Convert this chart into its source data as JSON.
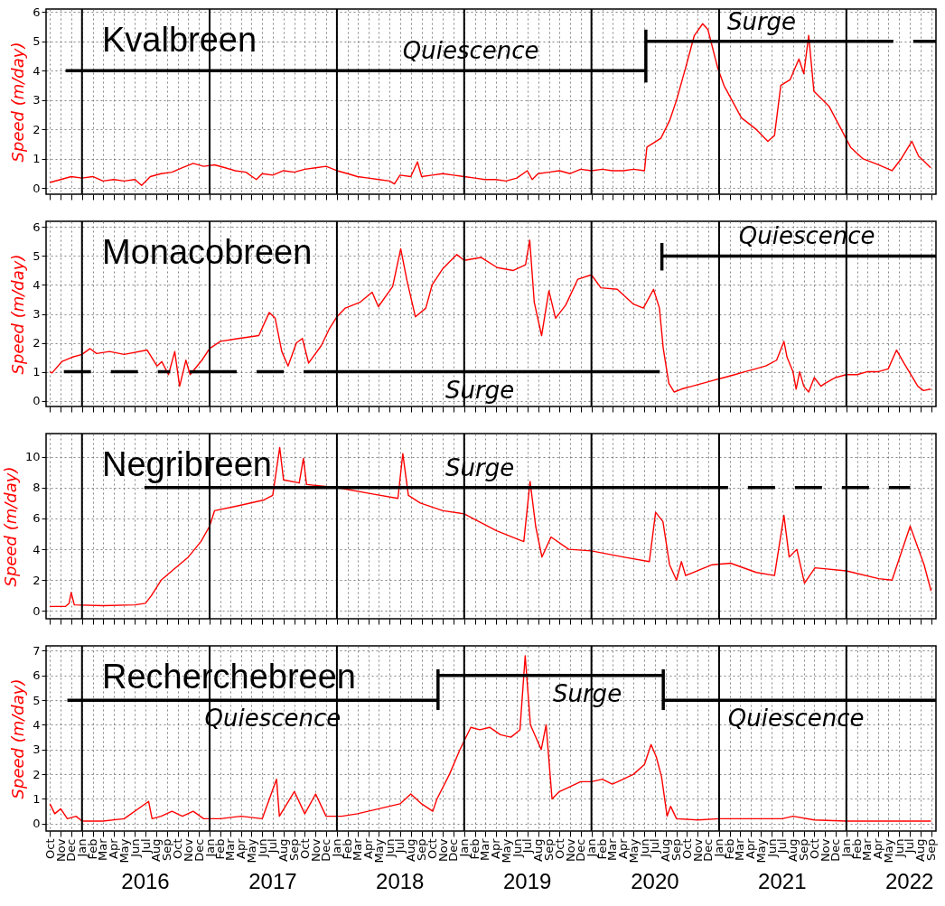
{
  "chart_data": [
    {
      "type": "line",
      "title": "Kvalbreen",
      "ylabel": "Speed (m/day)",
      "xlim": [
        "2015-09-20",
        "2022-09-15"
      ],
      "ylim": [
        -0.2,
        6.1
      ],
      "yticks": [
        0,
        1,
        2,
        3,
        4,
        5,
        6
      ],
      "grid": true,
      "tick_labels": "y",
      "ref_lines": [
        {
          "axis": "x",
          "value": "2016-01-01",
          "color": "#000000"
        },
        {
          "axis": "x",
          "value": "2017-01-01",
          "color": "#000000"
        },
        {
          "axis": "x",
          "value": "2018-01-01",
          "color": "#000000"
        },
        {
          "axis": "x",
          "value": "2019-01-01",
          "color": "#000000"
        },
        {
          "axis": "x",
          "value": "2020-01-01",
          "color": "#000000"
        },
        {
          "axis": "x",
          "value": "2021-01-01",
          "color": "#000000"
        },
        {
          "axis": "x",
          "value": "2022-01-01",
          "color": "#000000"
        }
      ],
      "series": [
        {
          "color": "#ff0000",
          "x": [
            "2015-10-01",
            "2015-11-01",
            "2015-12-01",
            "2016-01-01",
            "2016-02-01",
            "2016-03-01",
            "2016-04-01",
            "2016-05-01",
            "2016-06-01",
            "2016-06-20",
            "2016-07-15",
            "2016-08-15",
            "2016-09-15",
            "2016-10-15",
            "2016-11-15",
            "2016-12-15",
            "2017-01-15",
            "2017-02-15",
            "2017-03-15",
            "2017-04-15",
            "2017-05-15",
            "2017-06-01",
            "2017-07-01",
            "2017-08-01",
            "2017-09-01",
            "2017-10-01",
            "2017-11-01",
            "2017-12-01",
            "2018-01-01",
            "2018-02-01",
            "2018-03-01",
            "2018-04-01",
            "2018-05-01",
            "2018-06-01",
            "2018-06-15",
            "2018-07-01",
            "2018-08-01",
            "2018-08-20",
            "2018-09-01",
            "2018-10-01",
            "2018-11-01",
            "2018-12-01",
            "2019-01-01",
            "2019-02-01",
            "2019-03-01",
            "2019-04-01",
            "2019-05-01",
            "2019-06-01",
            "2019-07-01",
            "2019-07-15",
            "2019-08-01",
            "2019-09-01",
            "2019-10-01",
            "2019-11-01",
            "2019-12-01",
            "2020-01-01",
            "2020-02-01",
            "2020-03-01",
            "2020-04-01",
            "2020-05-01",
            "2020-06-01",
            "2020-06-08",
            "2020-07-18",
            "2020-08-12",
            "2020-09-01",
            "2020-09-27",
            "2020-10-22",
            "2020-11-15",
            "2020-11-30",
            "2020-12-28",
            "2021-01-15",
            "2021-03-06",
            "2021-04-18",
            "2021-05-21",
            "2021-06-09",
            "2021-06-27",
            "2021-07-24",
            "2021-08-18",
            "2021-09-01",
            "2021-09-15",
            "2021-09-30",
            "2021-11-12",
            "2021-12-22",
            "2022-01-13",
            "2022-02-18",
            "2022-04-03",
            "2022-05-12",
            "2022-06-07",
            "2022-07-08",
            "2022-07-27",
            "2022-08-31"
          ],
          "values": [
            0.2,
            0.3,
            0.4,
            0.35,
            0.4,
            0.25,
            0.3,
            0.25,
            0.3,
            0.1,
            0.4,
            0.5,
            0.55,
            0.7,
            0.85,
            0.75,
            0.8,
            0.7,
            0.6,
            0.55,
            0.3,
            0.5,
            0.45,
            0.6,
            0.55,
            0.65,
            0.7,
            0.75,
            0.6,
            0.5,
            0.4,
            0.35,
            0.3,
            0.25,
            0.15,
            0.45,
            0.4,
            0.9,
            0.4,
            0.45,
            0.5,
            0.45,
            0.4,
            0.35,
            0.3,
            0.3,
            0.25,
            0.35,
            0.6,
            0.3,
            0.5,
            0.55,
            0.6,
            0.5,
            0.65,
            0.6,
            0.65,
            0.6,
            0.6,
            0.65,
            0.6,
            1.4,
            1.7,
            2.3,
            3.0,
            4.1,
            5.2,
            5.6,
            5.4,
            4.1,
            3.5,
            2.4,
            2.0,
            1.6,
            1.8,
            3.5,
            3.7,
            4.4,
            3.9,
            5.2,
            3.3,
            2.8,
            1.9,
            1.4,
            1.0,
            0.8,
            0.6,
            1.0,
            1.6,
            1.1,
            0.7
          ]
        },
        {
          "color": "#000000",
          "line_style": "solid",
          "x": [
            "2015-11-15",
            "2020-06-05"
          ],
          "values": [
            4,
            4
          ]
        },
        {
          "color": "#000000",
          "line_style": "solid",
          "x": [
            "2020-06-05",
            "2020-06-05"
          ],
          "values": [
            3.6,
            5.4
          ]
        },
        {
          "color": "#000000",
          "line_style": "solid",
          "x": [
            "2020-06-05",
            "2022-02-27"
          ],
          "values": [
            5,
            5
          ]
        },
        {
          "color": "#000000",
          "line_style": "dashed",
          "x": [
            "2022-02-27",
            "2022-09-15"
          ],
          "values": [
            5,
            5
          ]
        }
      ],
      "annotations": [
        {
          "text": "Quiescence",
          "x": "2019-01-20",
          "y": 4
        },
        {
          "text": "Surge",
          "x": "2021-05-03",
          "y": 5
        }
      ]
    },
    {
      "type": "line",
      "title": "Monacobreen",
      "ylabel": "Speed (m/day)",
      "xlim": [
        "2015-09-20",
        "2022-09-15"
      ],
      "ylim": [
        -0.2,
        6.2
      ],
      "yticks": [
        0,
        1,
        2,
        3,
        4,
        5,
        6
      ],
      "grid": true,
      "tick_labels": "y",
      "ref_lines": [
        {
          "axis": "x",
          "value": "2016-01-01",
          "color": "#000000"
        },
        {
          "axis": "x",
          "value": "2017-01-01",
          "color": "#000000"
        },
        {
          "axis": "x",
          "value": "2018-01-01",
          "color": "#000000"
        },
        {
          "axis": "x",
          "value": "2019-01-01",
          "color": "#000000"
        },
        {
          "axis": "x",
          "value": "2020-01-01",
          "color": "#000000"
        },
        {
          "axis": "x",
          "value": "2021-01-01",
          "color": "#000000"
        },
        {
          "axis": "x",
          "value": "2022-01-01",
          "color": "#000000"
        }
      ],
      "series": [
        {
          "color": "#ff0000",
          "x": [
            "2015-10-01",
            "2015-10-07",
            "2015-11-05",
            "2015-12-03",
            "2016-01-01",
            "2016-01-24",
            "2016-02-12",
            "2016-03-20",
            "2016-05-01",
            "2016-07-06",
            "2016-08-03",
            "2016-08-17",
            "2016-09-05",
            "2016-09-23",
            "2016-10-07",
            "2016-10-25",
            "2016-11-06",
            "2016-12-10",
            "2017-01-01",
            "2017-02-01",
            "2017-03-25",
            "2017-05-22",
            "2017-06-21",
            "2017-07-08",
            "2017-07-27",
            "2017-08-14",
            "2017-09-07",
            "2017-09-24",
            "2017-10-12",
            "2017-11-17",
            "2017-12-11",
            "2018-01-01",
            "2018-01-25",
            "2018-03-08",
            "2018-04-12",
            "2018-04-30",
            "2018-06-10",
            "2018-07-03",
            "2018-07-21",
            "2018-08-14",
            "2018-09-13",
            "2018-10-01",
            "2018-10-31",
            "2018-12-11",
            "2019-01-01",
            "2019-02-19",
            "2019-04-06",
            "2019-05-22",
            "2019-06-26",
            "2019-07-08",
            "2019-07-21",
            "2019-08-11",
            "2019-09-01",
            "2019-09-20",
            "2019-10-19",
            "2019-11-23",
            "2020-01-01",
            "2020-01-28",
            "2020-03-15",
            "2020-04-29",
            "2020-05-29",
            "2020-06-27",
            "2020-07-14",
            "2020-07-25",
            "2020-08-10",
            "2020-08-25",
            "2020-09-15",
            "2020-10-15",
            "2020-11-15",
            "2020-12-15",
            "2021-01-15",
            "2021-02-15",
            "2021-03-15",
            "2021-04-15",
            "2021-05-15",
            "2021-06-15",
            "2021-07-06",
            "2021-07-15",
            "2021-08-01",
            "2021-08-10",
            "2021-08-20",
            "2021-09-01",
            "2021-09-15",
            "2021-10-01",
            "2021-10-20",
            "2021-11-01",
            "2021-12-01",
            "2022-01-01",
            "2022-02-01",
            "2022-03-01",
            "2022-04-01",
            "2022-05-01",
            "2022-05-25",
            "2022-06-15",
            "2022-07-10",
            "2022-07-25",
            "2022-08-10",
            "2022-08-31"
          ],
          "values": [
            1.0,
            0.96,
            1.36,
            1.5,
            1.6,
            1.8,
            1.63,
            1.7,
            1.6,
            1.75,
            1.2,
            1.35,
            0.9,
            1.7,
            0.5,
            1.4,
            0.9,
            1.4,
            1.8,
            2.05,
            2.15,
            2.25,
            3.05,
            2.85,
            1.7,
            1.2,
            2.0,
            2.15,
            1.3,
            1.9,
            2.5,
            2.9,
            3.2,
            3.4,
            3.75,
            3.25,
            3.95,
            5.25,
            4.15,
            2.9,
            3.2,
            4.0,
            4.55,
            5.05,
            4.85,
            4.95,
            4.6,
            4.5,
            4.7,
            5.55,
            3.4,
            2.25,
            3.8,
            2.85,
            3.3,
            4.2,
            4.35,
            3.9,
            3.85,
            3.35,
            3.2,
            3.85,
            3.2,
            1.8,
            0.6,
            0.3,
            0.4,
            0.5,
            0.6,
            0.7,
            0.8,
            0.9,
            1.0,
            1.1,
            1.2,
            1.4,
            2.05,
            1.5,
            1.0,
            0.4,
            1.0,
            0.5,
            0.3,
            0.8,
            0.5,
            0.6,
            0.8,
            0.9,
            0.9,
            1.0,
            1.0,
            1.1,
            1.75,
            1.3,
            0.8,
            0.5,
            0.35,
            0.4
          ]
        },
        {
          "color": "#000000",
          "line_style": "dashed",
          "x": [
            "2015-11-10",
            "2016-09-10"
          ],
          "values": [
            1,
            1
          ]
        },
        {
          "color": "#000000",
          "line_style": "solid",
          "x": [
            "2016-11-05",
            "2017-01-01"
          ],
          "values": [
            1,
            1
          ]
        },
        {
          "color": "#000000",
          "line_style": "dashed",
          "x": [
            "2017-01-01",
            "2017-10-26"
          ],
          "values": [
            1,
            1
          ]
        },
        {
          "color": "#000000",
          "line_style": "solid",
          "x": [
            "2017-10-26",
            "2020-07-15"
          ],
          "values": [
            1,
            1
          ]
        },
        {
          "color": "#000000",
          "line_style": "solid",
          "x": [
            "2020-07-21",
            "2020-07-21"
          ],
          "values": [
            4.5,
            5.45
          ]
        },
        {
          "color": "#000000",
          "line_style": "solid",
          "x": [
            "2020-07-21",
            "2022-09-15"
          ],
          "values": [
            5,
            5
          ]
        }
      ],
      "annotations": [
        {
          "text": "Surge",
          "x": "2019-02-15",
          "y": 1
        },
        {
          "text": "Quiescence",
          "x": "2021-09-10",
          "y": 5
        }
      ]
    },
    {
      "type": "line",
      "title": "Negribreen",
      "ylabel": "Speed (m/day)",
      "xlim": [
        "2015-09-20",
        "2022-09-15"
      ],
      "ylim": [
        -0.5,
        11.5
      ],
      "yticks": [
        0,
        2,
        4,
        6,
        8,
        10
      ],
      "grid": true,
      "tick_labels": "y",
      "ref_lines": [
        {
          "axis": "x",
          "value": "2016-01-01",
          "color": "#000000"
        },
        {
          "axis": "x",
          "value": "2017-01-01",
          "color": "#000000"
        },
        {
          "axis": "x",
          "value": "2018-01-01",
          "color": "#000000"
        },
        {
          "axis": "x",
          "value": "2019-01-01",
          "color": "#000000"
        },
        {
          "axis": "x",
          "value": "2020-01-01",
          "color": "#000000"
        },
        {
          "axis": "x",
          "value": "2021-01-01",
          "color": "#000000"
        },
        {
          "axis": "x",
          "value": "2022-01-01",
          "color": "#000000"
        }
      ],
      "series": [
        {
          "color": "#ff0000",
          "x": [
            "2015-10-01",
            "2015-11-15",
            "2015-11-25",
            "2015-12-01",
            "2015-12-10",
            "2016-03-01",
            "2016-06-01",
            "2016-07-01",
            "2016-07-18",
            "2016-08-15",
            "2016-09-15",
            "2016-11-01",
            "2016-12-07",
            "2017-01-01",
            "2017-01-15",
            "2017-03-20",
            "2017-06-06",
            "2017-07-01",
            "2017-07-21",
            "2017-08-01",
            "2017-09-15",
            "2017-09-27",
            "2017-10-06",
            "2018-01-01",
            "2018-04-10",
            "2018-06-25",
            "2018-07-09",
            "2018-07-25",
            "2018-08-28",
            "2018-11-01",
            "2019-01-01",
            "2019-04-04",
            "2019-06-21",
            "2019-07-09",
            "2019-07-25",
            "2019-08-12",
            "2019-09-07",
            "2019-10-28",
            "2020-01-01",
            "2020-04-01",
            "2020-06-15",
            "2020-07-03",
            "2020-07-24",
            "2020-08-12",
            "2020-09-01",
            "2020-09-15",
            "2020-09-27",
            "2020-12-12",
            "2021-02-03",
            "2021-04-18",
            "2021-06-09",
            "2021-07-06",
            "2021-07-21",
            "2021-08-12",
            "2021-09-03",
            "2021-10-03",
            "2022-01-01",
            "2022-04-04",
            "2022-05-12",
            "2022-07-03",
            "2022-08-12",
            "2022-09-01"
          ],
          "values": [
            0.3,
            0.3,
            0.5,
            1.2,
            0.4,
            0.35,
            0.4,
            0.5,
            1.0,
            2.0,
            2.6,
            3.5,
            4.5,
            5.5,
            6.5,
            6.8,
            7.2,
            7.5,
            10.6,
            8.5,
            8.3,
            9.9,
            8.2,
            8.0,
            7.6,
            7.3,
            10.2,
            7.5,
            7.0,
            6.5,
            6.3,
            5.2,
            4.5,
            8.4,
            5.5,
            3.5,
            4.8,
            4.0,
            3.9,
            3.5,
            3.2,
            6.4,
            5.8,
            3.0,
            2.0,
            3.2,
            2.3,
            3.0,
            3.1,
            2.5,
            2.3,
            6.2,
            3.5,
            4.0,
            1.8,
            2.8,
            2.6,
            2.1,
            2.0,
            5.5,
            3.0,
            1.3
          ]
        },
        {
          "color": "#000000",
          "line_style": "solid",
          "x": [
            "2016-06-28",
            "2020-11-10"
          ],
          "values": [
            8,
            8
          ]
        },
        {
          "color": "#000000",
          "line_style": "dashed",
          "x": [
            "2020-11-10",
            "2022-07-03"
          ],
          "values": [
            8,
            8
          ]
        }
      ],
      "annotations": [
        {
          "text": "Surge",
          "x": "2019-02-15",
          "y": 8
        }
      ]
    },
    {
      "type": "line",
      "title": "Recherchebreen",
      "ylabel": "Speed (m/day)",
      "xlim": [
        "2015-09-20",
        "2022-09-15"
      ],
      "ylim": [
        -0.3,
        7.2
      ],
      "yticks": [
        0,
        1,
        2,
        3,
        4,
        5,
        6,
        7
      ],
      "grid": true,
      "xticks": [
        {
          "value": "2015-10-01",
          "label": "Oct"
        },
        {
          "value": "2015-11-01",
          "label": "Nov"
        },
        {
          "value": "2015-12-01",
          "label": "Dec"
        },
        {
          "value": "2016-01-01",
          "label": "Jan"
        },
        {
          "value": "2016-02-01",
          "label": "Feb"
        },
        {
          "value": "2016-03-01",
          "label": "Mar"
        },
        {
          "value": "2016-04-01",
          "label": "Apr"
        },
        {
          "value": "2016-05-01",
          "label": "May"
        },
        {
          "value": "2016-06-01",
          "label": "Jun"
        },
        {
          "value": "2016-07-01",
          "label": "Jul"
        },
        {
          "value": "2016-08-01",
          "label": "Aug"
        },
        {
          "value": "2016-09-01",
          "label": "Sep"
        },
        {
          "value": "2016-10-01",
          "label": "Oct"
        },
        {
          "value": "2016-11-01",
          "label": "Nov"
        },
        {
          "value": "2016-12-01",
          "label": "Dec"
        },
        {
          "value": "2017-01-01",
          "label": "Jan"
        },
        {
          "value": "2017-02-01",
          "label": "Feb"
        },
        {
          "value": "2017-03-01",
          "label": "Mar"
        },
        {
          "value": "2017-04-01",
          "label": "Apr"
        },
        {
          "value": "2017-05-01",
          "label": "May"
        },
        {
          "value": "2017-06-01",
          "label": "Jun"
        },
        {
          "value": "2017-07-01",
          "label": "Jul"
        },
        {
          "value": "2017-08-01",
          "label": "Aug"
        },
        {
          "value": "2017-09-01",
          "label": "Sep"
        },
        {
          "value": "2017-10-01",
          "label": "Oct"
        },
        {
          "value": "2017-11-01",
          "label": "Nov"
        },
        {
          "value": "2017-12-01",
          "label": "Dec"
        },
        {
          "value": "2018-01-01",
          "label": "Jan"
        },
        {
          "value": "2018-02-01",
          "label": "Feb"
        },
        {
          "value": "2018-03-01",
          "label": "Mar"
        },
        {
          "value": "2018-04-01",
          "label": "Apr"
        },
        {
          "value": "2018-05-01",
          "label": "May"
        },
        {
          "value": "2018-06-01",
          "label": "Jun"
        },
        {
          "value": "2018-07-01",
          "label": "Jul"
        },
        {
          "value": "2018-08-01",
          "label": "Aug"
        },
        {
          "value": "2018-09-01",
          "label": "Sep"
        },
        {
          "value": "2018-10-01",
          "label": "Oct"
        },
        {
          "value": "2018-11-01",
          "label": "Nov"
        },
        {
          "value": "2018-12-01",
          "label": "Dec"
        },
        {
          "value": "2019-01-01",
          "label": "Jan"
        },
        {
          "value": "2019-02-01",
          "label": "Feb"
        },
        {
          "value": "2019-03-01",
          "label": "Mar"
        },
        {
          "value": "2019-04-01",
          "label": "Apr"
        },
        {
          "value": "2019-05-01",
          "label": "May"
        },
        {
          "value": "2019-06-01",
          "label": "Jun"
        },
        {
          "value": "2019-07-01",
          "label": "Jul"
        },
        {
          "value": "2019-08-01",
          "label": "Aug"
        },
        {
          "value": "2019-09-01",
          "label": "Sep"
        },
        {
          "value": "2019-10-01",
          "label": "Oct"
        },
        {
          "value": "2019-11-01",
          "label": "Nov"
        },
        {
          "value": "2019-12-01",
          "label": "Dec"
        },
        {
          "value": "2020-01-01",
          "label": "Jan"
        },
        {
          "value": "2020-02-01",
          "label": "Feb"
        },
        {
          "value": "2020-03-01",
          "label": "Mar"
        },
        {
          "value": "2020-04-01",
          "label": "Apr"
        },
        {
          "value": "2020-05-01",
          "label": "May"
        },
        {
          "value": "2020-06-01",
          "label": "Jun"
        },
        {
          "value": "2020-07-01",
          "label": "Jul"
        },
        {
          "value": "2020-08-01",
          "label": "Aug"
        },
        {
          "value": "2020-09-01",
          "label": "Sep"
        },
        {
          "value": "2020-10-01",
          "label": "Oct"
        },
        {
          "value": "2020-11-01",
          "label": "Nov"
        },
        {
          "value": "2020-12-01",
          "label": "Dec"
        },
        {
          "value": "2021-01-01",
          "label": "Jan"
        },
        {
          "value": "2021-02-01",
          "label": "Feb"
        },
        {
          "value": "2021-03-01",
          "label": "Mar"
        },
        {
          "value": "2021-04-01",
          "label": "Apr"
        },
        {
          "value": "2021-05-01",
          "label": "May"
        },
        {
          "value": "2021-06-01",
          "label": "Jun"
        },
        {
          "value": "2021-07-01",
          "label": "Jul"
        },
        {
          "value": "2021-08-01",
          "label": "Aug"
        },
        {
          "value": "2021-09-01",
          "label": "Sep"
        },
        {
          "value": "2021-10-01",
          "label": "Oct"
        },
        {
          "value": "2021-11-01",
          "label": "Nov"
        },
        {
          "value": "2021-12-01",
          "label": "Dec"
        },
        {
          "value": "2022-01-01",
          "label": "Jan"
        },
        {
          "value": "2022-02-01",
          "label": "Feb"
        },
        {
          "value": "2022-03-01",
          "label": "Mar"
        },
        {
          "value": "2022-04-01",
          "label": "Apr"
        },
        {
          "value": "2022-05-01",
          "label": "May"
        },
        {
          "value": "2022-06-01",
          "label": "Jun"
        },
        {
          "value": "2022-07-01",
          "label": "Jul"
        },
        {
          "value": "2022-08-01",
          "label": "Aug"
        },
        {
          "value": "2022-09-01",
          "label": "Sep"
        }
      ],
      "x2lim": [
        "2015-09-20",
        "2022-09-15"
      ],
      "x2ticks": [
        {
          "value": "2016-07-01",
          "label": "2016"
        },
        {
          "value": "2017-07-01",
          "label": "2017"
        },
        {
          "value": "2018-07-01",
          "label": "2018"
        },
        {
          "value": "2019-07-01",
          "label": "2019"
        },
        {
          "value": "2020-07-01",
          "label": "2020"
        },
        {
          "value": "2021-07-01",
          "label": "2021"
        },
        {
          "value": "2022-07-01",
          "label": "2022"
        }
      ],
      "ref_lines": [
        {
          "axis": "x",
          "value": "2016-01-01",
          "color": "#000000"
        },
        {
          "axis": "x",
          "value": "2017-01-01",
          "color": "#000000"
        },
        {
          "axis": "x",
          "value": "2018-01-01",
          "color": "#000000"
        },
        {
          "axis": "x",
          "value": "2019-01-01",
          "color": "#000000"
        },
        {
          "axis": "x",
          "value": "2020-01-01",
          "color": "#000000"
        },
        {
          "axis": "x",
          "value": "2021-01-01",
          "color": "#000000"
        },
        {
          "axis": "x",
          "value": "2022-01-01",
          "color": "#000000"
        }
      ],
      "series": [
        {
          "color": "#ff0000",
          "x": [
            "2015-10-01",
            "2015-10-15",
            "2015-11-01",
            "2015-11-20",
            "2015-12-15",
            "2016-01-01",
            "2016-03-01",
            "2016-05-01",
            "2016-07-10",
            "2016-07-20",
            "2016-08-15",
            "2016-09-15",
            "2016-10-15",
            "2016-11-15",
            "2016-12-15",
            "2017-02-01",
            "2017-04-01",
            "2017-06-01",
            "2017-07-12",
            "2017-07-20",
            "2017-09-01",
            "2017-10-01",
            "2017-11-01",
            "2017-12-01",
            "2018-01-15",
            "2018-03-01",
            "2018-05-01",
            "2018-07-01",
            "2018-08-01",
            "2018-09-01",
            "2018-10-03",
            "2018-10-15",
            "2018-11-20",
            "2018-12-20",
            "2019-01-20",
            "2019-02-15",
            "2019-03-15",
            "2019-04-15",
            "2019-05-15",
            "2019-06-10",
            "2019-06-25",
            "2019-07-10",
            "2019-08-10",
            "2019-08-24",
            "2019-09-10",
            "2019-10-01",
            "2019-11-01",
            "2019-12-01",
            "2020-01-01",
            "2020-02-01",
            "2020-03-01",
            "2020-04-01",
            "2020-05-01",
            "2020-06-01",
            "2020-06-20",
            "2020-07-05",
            "2020-07-20",
            "2020-08-05",
            "2020-08-15",
            "2020-09-01",
            "2020-11-01",
            "2021-01-01",
            "2021-04-01",
            "2021-07-01",
            "2021-08-01",
            "2021-10-01",
            "2022-01-01",
            "2022-04-01",
            "2022-07-01",
            "2022-09-01"
          ],
          "values": [
            0.8,
            0.4,
            0.6,
            0.2,
            0.3,
            0.1,
            0.1,
            0.2,
            0.9,
            0.2,
            0.3,
            0.5,
            0.3,
            0.5,
            0.2,
            0.2,
            0.3,
            0.2,
            1.8,
            0.3,
            1.3,
            0.4,
            1.2,
            0.3,
            0.3,
            0.4,
            0.6,
            0.8,
            1.2,
            0.8,
            0.5,
            1.0,
            2.0,
            3.0,
            3.9,
            3.8,
            3.9,
            3.6,
            3.5,
            3.8,
            6.8,
            4.0,
            3.0,
            4.0,
            1.0,
            1.3,
            1.5,
            1.7,
            1.7,
            1.8,
            1.6,
            1.8,
            2.0,
            2.4,
            3.2,
            2.7,
            1.9,
            0.3,
            0.7,
            0.2,
            0.15,
            0.2,
            0.2,
            0.2,
            0.3,
            0.15,
            0.1,
            0.1,
            0.1,
            0.1
          ]
        },
        {
          "color": "#000000",
          "line_style": "solid",
          "x": [
            "2015-11-20",
            "2018-10-18"
          ],
          "values": [
            5,
            5
          ]
        },
        {
          "color": "#000000",
          "line_style": "solid",
          "x": [
            "2018-10-18",
            "2018-10-18"
          ],
          "values": [
            4.6,
            6.25
          ]
        },
        {
          "color": "#000000",
          "line_style": "solid",
          "x": [
            "2018-10-18",
            "2020-07-25"
          ],
          "values": [
            6,
            6
          ]
        },
        {
          "color": "#000000",
          "line_style": "solid",
          "x": [
            "2020-07-25",
            "2020-07-25"
          ],
          "values": [
            4.6,
            6.25
          ]
        },
        {
          "color": "#000000",
          "line_style": "solid",
          "x": [
            "2020-07-25",
            "2022-09-15"
          ],
          "values": [
            5,
            5
          ]
        }
      ],
      "annotations": [
        {
          "text": "Quiescence",
          "x": "2017-07-01",
          "y": 5
        },
        {
          "text": "Surge",
          "x": "2019-12-20",
          "y": 6
        },
        {
          "text": "Quiescence",
          "x": "2021-08-10",
          "y": 5
        }
      ]
    }
  ]
}
